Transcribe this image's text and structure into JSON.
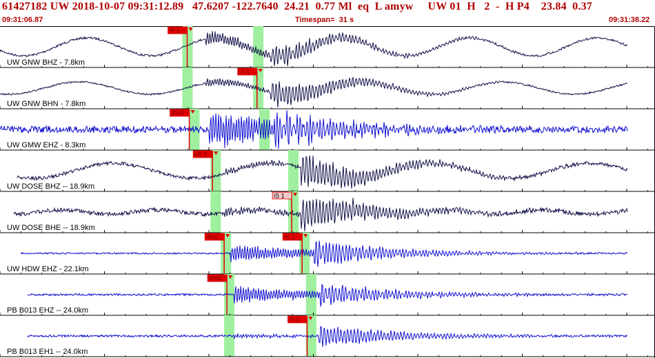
{
  "header": {
    "event_line": "61427182 UW 2018-10-07 09:31:12.89   47.6207 -122.7640  24.21  0.77 Ml  eq  L amyw     UW 01  H   2  -  H P4    23.84  0.37",
    "start_time": "09:31:06.87",
    "timespan": "Timespan=  31 s",
    "end_time": "09:31:38.22"
  },
  "colors": {
    "header_text": "#b00000",
    "trace_dark": "#101048",
    "trace_blue": "#1010d0",
    "pick_red": "#e00000",
    "pick_pink": "#f4c8c8",
    "window_green": "#9fef9f"
  },
  "channels": [
    {
      "label": "UW GNW BHZ - 7.8km",
      "color": "dark",
      "style": "surface",
      "picks": [
        {
          "label": "iP 1",
          "style": "red",
          "t": 8.96
        }
      ],
      "windows": [
        {
          "t": 8.99
        },
        {
          "t": 12.38
        }
      ]
    },
    {
      "label": "UW GNW BHN - 7.8km",
      "color": "dark",
      "style": "surface",
      "picks": [
        {
          "label": "iS 1",
          "style": "red",
          "t": 12.3
        }
      ],
      "windows": [
        {
          "t": 8.99
        },
        {
          "t": 12.38
        }
      ]
    },
    {
      "label": "UW GMW EHZ - 8.3km",
      "color": "blue",
      "style": "noise",
      "picks": [
        {
          "label": "iPx0",
          "style": "red",
          "t": 9.06
        }
      ],
      "windows": [
        {
          "t": 9.32
        },
        {
          "t": 12.68
        }
      ]
    },
    {
      "label": "UW DOSE BHZ -- 18.9km",
      "color": "dark",
      "style": "surface",
      "picks": [
        {
          "label": "eP 2",
          "style": "red",
          "t": 10.17
        }
      ],
      "windows": [
        {
          "t": 10.34
        },
        {
          "t": 14.06
        }
      ]
    },
    {
      "label": "UW DOSE BHE -- 18.9km",
      "color": "dark",
      "style": "surface",
      "picks": [
        {
          "label": "iS 1",
          "style": "pink",
          "t": 13.96
        }
      ],
      "windows": [
        {
          "t": 10.34
        },
        {
          "t": 14.06
        }
      ]
    },
    {
      "label": "UW HDW EHZ - 22.1km",
      "color": "blue",
      "style": "noise",
      "picks": [
        {
          "label": "iPx0",
          "style": "red",
          "t": 10.73
        },
        {
          "label": "iS 1",
          "style": "red",
          "t": 14.46
        }
      ],
      "windows": [
        {
          "t": 10.83
        },
        {
          "t": 14.59
        }
      ]
    },
    {
      "label": "PB B013 EHZ -- 24.0km",
      "color": "blue",
      "style": "noise",
      "picks": [
        {
          "label": "iPd0",
          "style": "red",
          "t": 10.86
        }
      ],
      "windows": [
        {
          "t": 10.99
        },
        {
          "t": 14.91
        }
      ]
    },
    {
      "label": "PB B013 EH1 -- 24.0km",
      "color": "blue",
      "style": "noise",
      "picks": [
        {
          "label": "iS 1",
          "style": "red",
          "t": 14.7
        }
      ],
      "windows": [
        {
          "t": 10.99
        },
        {
          "t": 14.91
        }
      ]
    }
  ]
}
